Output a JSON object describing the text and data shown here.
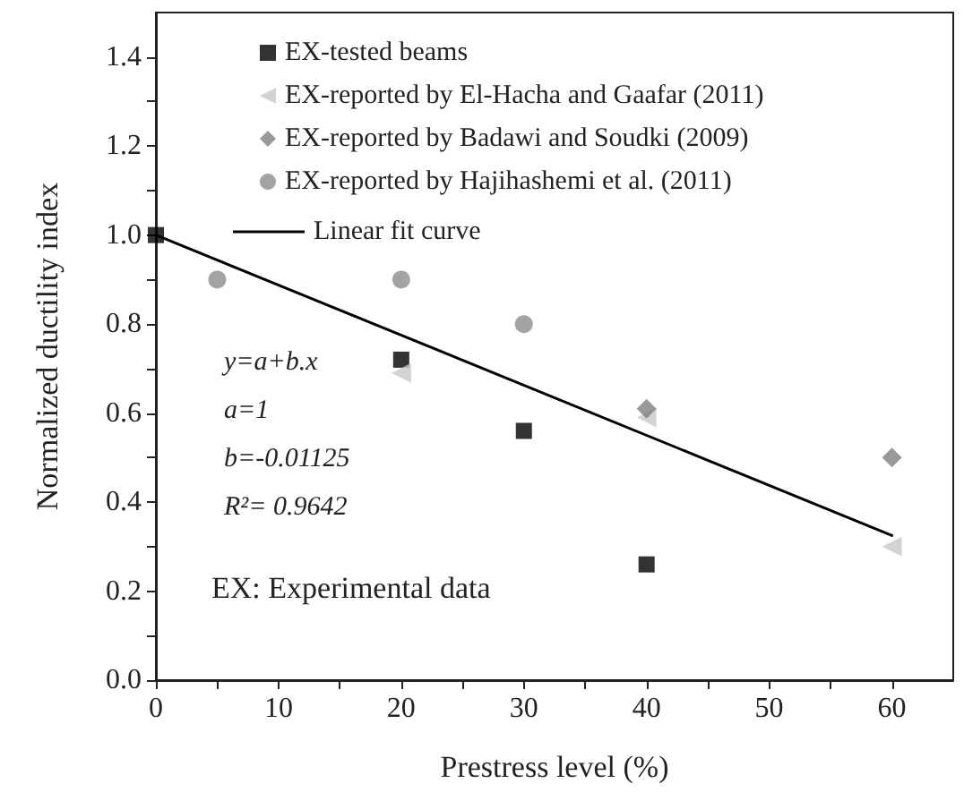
{
  "chart_data": {
    "type": "scatter",
    "xlabel": "Prestress level (%)",
    "ylabel": "Normalized ductility index",
    "xlim": [
      0,
      65
    ],
    "ylim": [
      0,
      1.5
    ],
    "xticks": [
      0,
      {
        "value": 5,
        "label": null
      },
      10,
      {
        "value": 15,
        "label": null
      },
      20,
      {
        "value": 25,
        "label": null
      },
      30,
      {
        "value": 35,
        "label": null
      },
      40,
      {
        "value": 45,
        "label": null
      },
      50,
      {
        "value": 55,
        "label": null
      },
      60
    ],
    "yticks": [
      {
        "value": 0,
        "label": "0.0"
      },
      {
        "value": 0.1,
        "label": null
      },
      0.2,
      {
        "value": 0.3,
        "label": null
      },
      0.4,
      {
        "value": 0.5,
        "label": null
      },
      0.6,
      {
        "value": 0.7,
        "label": null
      },
      0.8,
      {
        "value": 0.9,
        "label": null
      },
      {
        "value": 1.0,
        "label": "1.0"
      },
      {
        "value": 1.1,
        "label": null
      },
      1.2,
      {
        "value": 1.3,
        "label": null
      },
      1.4
    ],
    "grid": false,
    "legend": "top left",
    "series": [
      {
        "name": "EX-tested beams",
        "marker": "square",
        "color": "#000000",
        "x": [
          0,
          20,
          30,
          40
        ],
        "values": [
          1.0,
          0.72,
          0.56,
          0.26
        ]
      },
      {
        "name": "EX-reported by El-Hacha and Gaafar (2011)",
        "marker": "triangle",
        "color": "#c8c8c8",
        "x": [
          20,
          40,
          60
        ],
        "values": [
          0.69,
          0.59,
          0.3
        ]
      },
      {
        "name": "EX-reported by Badawi and Soudki (2009)",
        "marker": "diamond",
        "color": "#808080",
        "x": [
          40,
          60
        ],
        "values": [
          0.61,
          0.5
        ]
      },
      {
        "name": "EX-reported by Hajihashemi et al. (2011)",
        "marker": "circle",
        "color": "#8c8c8c",
        "x": [
          5,
          20,
          30
        ],
        "values": [
          0.9,
          0.9,
          0.8
        ]
      },
      {
        "name": "Linear fit curve",
        "type": "line",
        "marker": "none",
        "line_style": "solid",
        "color": "#000000",
        "x": [
          0,
          60
        ],
        "values": [
          1.0,
          0.325
        ]
      }
    ],
    "annotations": [
      "y=a+b.x",
      "a=1",
      "b=-0.01125",
      "R²= 0.9642",
      "EX: Experimental data"
    ]
  }
}
